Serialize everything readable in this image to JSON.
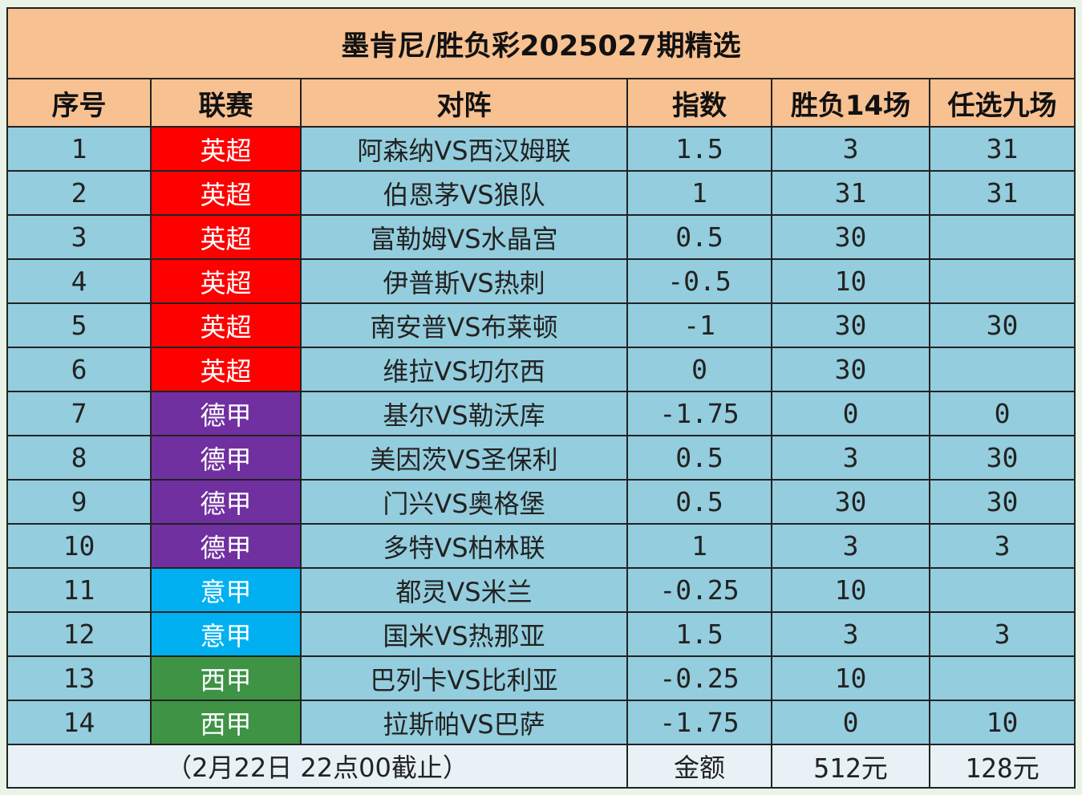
{
  "title": "墨肯尼/胜负彩2025027期精选",
  "headers": [
    "序号",
    "联赛",
    "对阵",
    "指数",
    "胜负14场",
    "任选九场"
  ],
  "league_colors": {
    "英超": "#fe0000",
    "德甲": "#7030a0",
    "意甲": "#00b0f0",
    "西甲": "#3e9345"
  },
  "rows": [
    {
      "no": "1",
      "league": "英超",
      "match": "阿森纳VS西汉姆联",
      "index": "1.5",
      "sf14": "3",
      "r9": "31"
    },
    {
      "no": "2",
      "league": "英超",
      "match": "伯恩茅VS狼队",
      "index": "1",
      "sf14": "31",
      "r9": "31"
    },
    {
      "no": "3",
      "league": "英超",
      "match": "富勒姆VS水晶宫",
      "index": "0.5",
      "sf14": "30",
      "r9": ""
    },
    {
      "no": "4",
      "league": "英超",
      "match": "伊普斯VS热刺",
      "index": "-0.5",
      "sf14": "10",
      "r9": ""
    },
    {
      "no": "5",
      "league": "英超",
      "match": "南安普VS布莱顿",
      "index": "-1",
      "sf14": "30",
      "r9": "30"
    },
    {
      "no": "6",
      "league": "英超",
      "match": "维拉VS切尔西",
      "index": "0",
      "sf14": "30",
      "r9": ""
    },
    {
      "no": "7",
      "league": "德甲",
      "match": "基尔VS勒沃库",
      "index": "-1.75",
      "sf14": "0",
      "r9": "0"
    },
    {
      "no": "8",
      "league": "德甲",
      "match": "美因茨VS圣保利",
      "index": "0.5",
      "sf14": "3",
      "r9": "30"
    },
    {
      "no": "9",
      "league": "德甲",
      "match": "门兴VS奥格堡",
      "index": "0.5",
      "sf14": "30",
      "r9": "30"
    },
    {
      "no": "10",
      "league": "德甲",
      "match": "多特VS柏林联",
      "index": "1",
      "sf14": "3",
      "r9": "3"
    },
    {
      "no": "11",
      "league": "意甲",
      "match": "都灵VS米兰",
      "index": "-0.25",
      "sf14": "10",
      "r9": ""
    },
    {
      "no": "12",
      "league": "意甲",
      "match": "国米VS热那亚",
      "index": "1.5",
      "sf14": "3",
      "r9": "3"
    },
    {
      "no": "13",
      "league": "西甲",
      "match": "巴列卡VS比利亚",
      "index": "-0.25",
      "sf14": "10",
      "r9": ""
    },
    {
      "no": "14",
      "league": "西甲",
      "match": "拉斯帕VS巴萨",
      "index": "-1.75",
      "sf14": "0",
      "r9": "10"
    }
  ],
  "footer": {
    "deadline": "（2月22日  22点00截止）",
    "amount_label": "金额",
    "sf14_amount": "512元",
    "r9_amount": "128元"
  }
}
